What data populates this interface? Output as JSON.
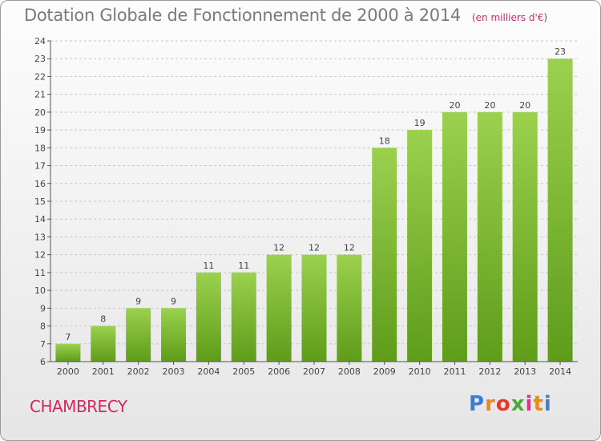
{
  "header": {
    "title": "Dotation Globale de Fonctionnement de 2000 à 2014",
    "subtitle": "(en milliers d'€)"
  },
  "footer": {
    "commune": "CHAMBRECY",
    "logo": "Proxiti"
  },
  "colors": {
    "bar_light": "#9bd14e",
    "bar_dark": "#5e9c1a",
    "axis": "#555555",
    "grid": "#c8c8c8"
  },
  "chart_data": {
    "type": "bar",
    "categories": [
      "2000",
      "2001",
      "2002",
      "2003",
      "2004",
      "2005",
      "2006",
      "2007",
      "2008",
      "2009",
      "2010",
      "2011",
      "2012",
      "2013",
      "2014"
    ],
    "values": [
      7,
      8,
      9,
      9,
      11,
      11,
      12,
      12,
      12,
      18,
      19,
      20,
      20,
      20,
      23
    ],
    "title": "Dotation Globale de Fonctionnement de 2000 à 2014",
    "subtitle": "(en milliers d'€)",
    "xlabel": "",
    "ylabel": "",
    "ylim": [
      6,
      24
    ],
    "yticks": [
      6,
      7,
      8,
      9,
      10,
      11,
      12,
      13,
      14,
      15,
      16,
      17,
      18,
      19,
      20,
      21,
      22,
      23,
      24
    ],
    "grid": true,
    "data_labels": true
  }
}
